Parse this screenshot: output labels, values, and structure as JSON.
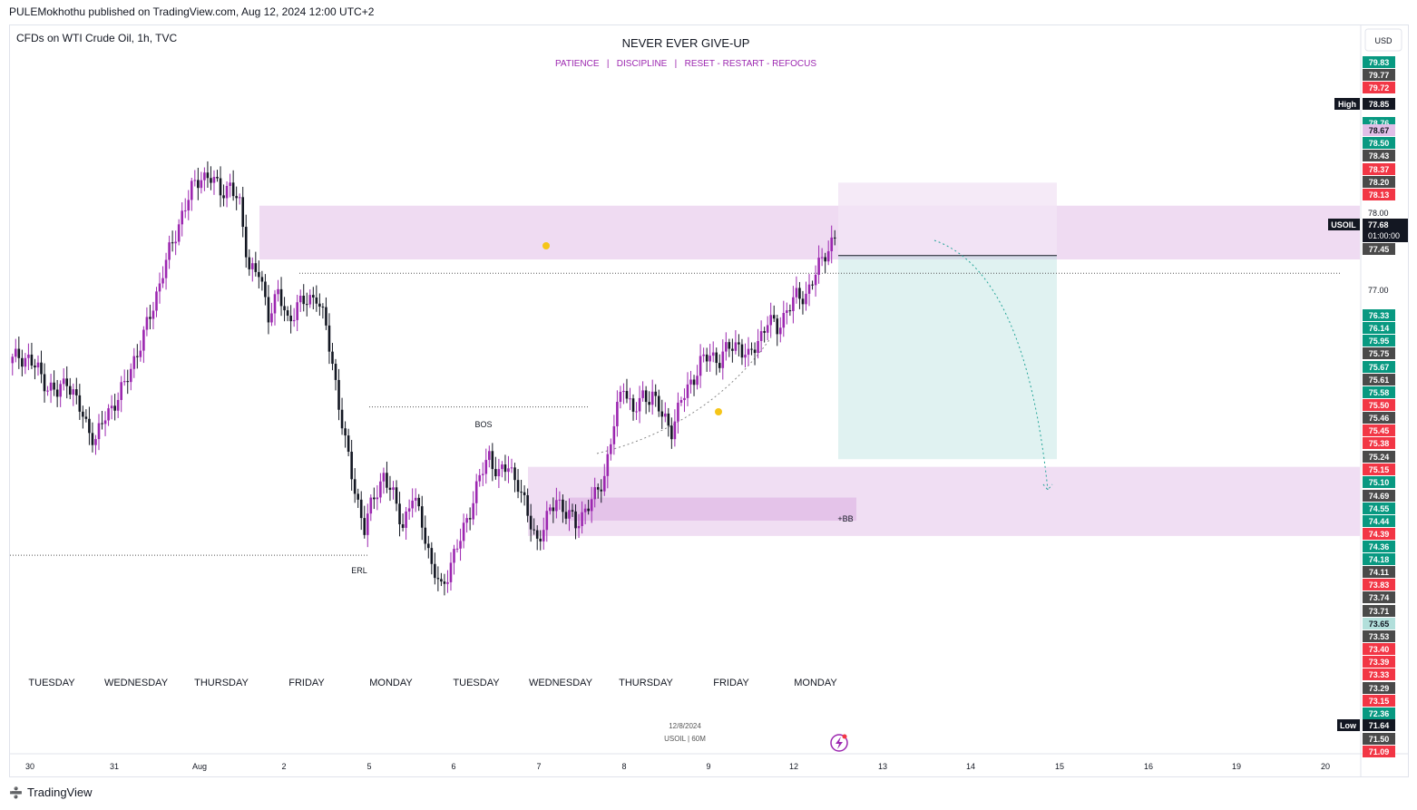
{
  "publisher": "PULEMokhothu published on TradingView.com, Aug 12, 2024 12:00 UTC+2",
  "symbol_label": "CFDs on WTI Crude Oil, 1h, TVC",
  "title": "NEVER EVER GIVE-UP",
  "subtitle": "PATIENCE   |   DISCIPLINE   |   RESET - RESTART - REFOCUS",
  "currency": "USD",
  "footer_brand": "TradingView",
  "colors": {
    "bull": "#9c27b0",
    "bear": "#131722",
    "zone": "#e1bee7",
    "target": "#b2dfdb",
    "red_tag": "#f23645",
    "green_tag": "#089981",
    "gray_tag": "#4a4a4a"
  },
  "annotations": {
    "bos": "BOS",
    "erl": "ERL",
    "bb": "+BB",
    "watermark_date": "12/8/2024",
    "watermark_symbol": "USOIL | 60M"
  },
  "day_labels": [
    "TUESDAY",
    "WEDNESDAY",
    "THURSDAY",
    "FRIDAY",
    "MONDAY",
    "TUESDAY",
    "WEDNESDAY",
    "THURSDAY",
    "FRIDAY",
    "MONDAY"
  ],
  "badges": {
    "high_label": "High",
    "high_value": "78.85",
    "low_label": "Low",
    "low_value": "71.64",
    "symbol_tag": "USOIL",
    "last_price": "77.68",
    "countdown": "01:00:00"
  },
  "chart_data": {
    "type": "candlestick",
    "timeframe": "1h",
    "x_ticks": [
      "30",
      "31",
      "Aug",
      "2",
      "5",
      "6",
      "7",
      "8",
      "9",
      "12",
      "13",
      "14",
      "15",
      "16",
      "19",
      "20"
    ],
    "y_ticks": [
      78.0,
      77.0,
      76.5
    ],
    "ylim": [
      71.0,
      80.4
    ],
    "price_tags": [
      {
        "v": "79.83",
        "c": "green"
      },
      {
        "v": "79.77",
        "c": "gray"
      },
      {
        "v": "79.72",
        "c": "red"
      },
      {
        "v": "78.76",
        "c": "green"
      },
      {
        "v": "78.67",
        "c": "pink"
      },
      {
        "v": "78.50",
        "c": "green"
      },
      {
        "v": "78.43",
        "c": "gray"
      },
      {
        "v": "78.37",
        "c": "red"
      },
      {
        "v": "78.20",
        "c": "gray"
      },
      {
        "v": "78.13",
        "c": "red"
      },
      {
        "v": "77.45",
        "c": "gray"
      },
      {
        "v": "76.33",
        "c": "green"
      },
      {
        "v": "76.14",
        "c": "green"
      },
      {
        "v": "75.95",
        "c": "green"
      },
      {
        "v": "75.75",
        "c": "gray"
      },
      {
        "v": "75.67",
        "c": "green"
      },
      {
        "v": "75.61",
        "c": "gray"
      },
      {
        "v": "75.58",
        "c": "green"
      },
      {
        "v": "75.50",
        "c": "red"
      },
      {
        "v": "75.46",
        "c": "gray"
      },
      {
        "v": "75.45",
        "c": "red"
      },
      {
        "v": "75.38",
        "c": "red"
      },
      {
        "v": "75.24",
        "c": "gray"
      },
      {
        "v": "75.15",
        "c": "red"
      },
      {
        "v": "75.10",
        "c": "green"
      },
      {
        "v": "74.69",
        "c": "gray"
      },
      {
        "v": "74.55",
        "c": "green"
      },
      {
        "v": "74.44",
        "c": "green"
      },
      {
        "v": "74.39",
        "c": "red"
      },
      {
        "v": "74.36",
        "c": "green"
      },
      {
        "v": "74.18",
        "c": "green"
      },
      {
        "v": "74.11",
        "c": "gray"
      },
      {
        "v": "73.83",
        "c": "red"
      },
      {
        "v": "73.74",
        "c": "gray"
      },
      {
        "v": "73.71",
        "c": "gray"
      },
      {
        "v": "73.65",
        "c": "teal"
      },
      {
        "v": "73.53",
        "c": "gray"
      },
      {
        "v": "73.40",
        "c": "red"
      },
      {
        "v": "73.39",
        "c": "red"
      },
      {
        "v": "73.33",
        "c": "red"
      },
      {
        "v": "73.29",
        "c": "gray"
      },
      {
        "v": "73.15",
        "c": "red"
      },
      {
        "v": "72.36",
        "c": "green"
      },
      {
        "v": "71.50",
        "c": "gray"
      },
      {
        "v": "71.09",
        "c": "red"
      }
    ],
    "supply_zone": [
      77.4,
      78.1
    ],
    "demand_zone": [
      73.8,
      74.7
    ],
    "bb_zone": [
      74.0,
      74.3
    ],
    "trade": {
      "entry": 77.45,
      "stop": 78.4,
      "target": 74.8
    },
    "key_levels": {
      "bos": 75.48,
      "erl": 73.55,
      "dotted_high": 77.22
    },
    "price_path": [
      76.05,
      76.15,
      76.1,
      75.95,
      75.75,
      75.65,
      75.85,
      75.55,
      75.25,
      75.05,
      75.35,
      75.55,
      75.75,
      76.1,
      76.4,
      76.8,
      77.25,
      77.6,
      78.0,
      78.3,
      78.5,
      78.45,
      78.3,
      78.35,
      78.1,
      77.3,
      77.2,
      76.7,
      76.95,
      76.6,
      76.8,
      76.85,
      76.95,
      76.5,
      75.8,
      75.0,
      74.4,
      73.9,
      74.3,
      74.6,
      74.3,
      73.95,
      74.3,
      74.0,
      73.4,
      73.1,
      73.45,
      73.75,
      74.15,
      74.55,
      74.85,
      74.6,
      74.7,
      74.5,
      74.05,
      73.75,
      74.0,
      74.3,
      74.1,
      73.95,
      74.15,
      74.3,
      74.6,
      75.25,
      75.8,
      75.4,
      75.6,
      75.65,
      75.35,
      75.2,
      75.55,
      75.8,
      76.05,
      76.15,
      76.1,
      76.25,
      76.3,
      76.1,
      76.35,
      76.6,
      76.5,
      76.75,
      76.9,
      76.95,
      77.2,
      77.5,
      77.68
    ]
  }
}
